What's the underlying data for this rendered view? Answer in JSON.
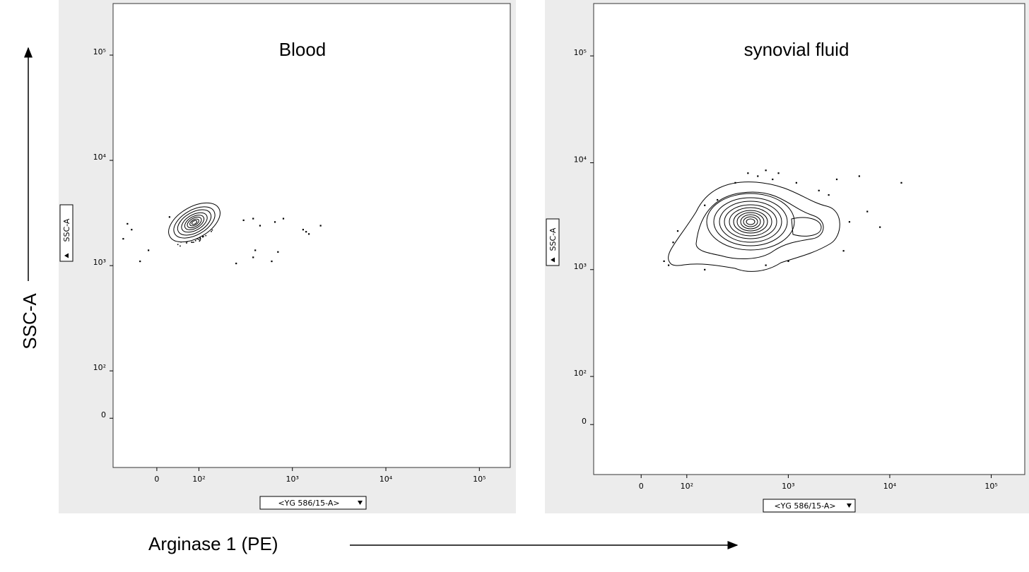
{
  "chart_data": [
    {
      "type": "scatter",
      "title": "Blood",
      "x_label": "<YG 586/15-A>",
      "y_label": "SSC-A",
      "color": "#000000",
      "xlim": [
        -104,
        214000
      ],
      "ylim": [
        -104,
        309000
      ],
      "xticks": [
        0,
        {
          "value": 100,
          "label": "10²"
        },
        {
          "value": 1000,
          "label": "10³"
        },
        {
          "value": 10000,
          "label": "10⁴"
        },
        {
          "value": 100000,
          "label": "10⁵"
        }
      ],
      "yticks": [
        0,
        {
          "value": 100,
          "label": "10²"
        },
        {
          "value": 1000,
          "label": "10³"
        },
        {
          "value": 10000,
          "label": "10⁴"
        },
        {
          "value": 100000,
          "label": "10⁵"
        }
      ],
      "x": [
        300,
        380,
        450,
        650,
        1400,
        1500,
        2000,
        380,
        600,
        700,
        -60,
        -80,
        -40,
        -20,
        30,
        800,
        1300,
        250,
        400,
        -70
      ],
      "y": [
        2700,
        2800,
        2400,
        2600,
        2100,
        2000,
        2400,
        1200,
        1100,
        1350,
        2200,
        1800,
        1100,
        1400,
        2900,
        2800,
        2200,
        1050,
        1400,
        2500
      ]
    },
    {
      "type": "scatter",
      "title": "synovial fluid",
      "x_label": "<YG 586/15-A>",
      "y_label": "SSC-A",
      "color": "#000000",
      "xlim": [
        -104,
        214000
      ],
      "ylim": [
        -104,
        309000
      ],
      "xticks": [
        0,
        {
          "value": 100,
          "label": "10²"
        },
        {
          "value": 1000,
          "label": "10³"
        },
        {
          "value": 10000,
          "label": "10⁴"
        },
        {
          "value": 100000,
          "label": "10⁵"
        }
      ],
      "yticks": [
        0,
        {
          "value": 100,
          "label": "10²"
        },
        {
          "value": 1000,
          "label": "10³"
        },
        {
          "value": 10000,
          "label": "10⁴"
        },
        {
          "value": 100000,
          "label": "10⁵"
        }
      ],
      "x": [
        50,
        60,
        70,
        80,
        150,
        200,
        300,
        400,
        500,
        600,
        700,
        800,
        1200,
        2000,
        2500,
        3000,
        5000,
        6000,
        8000,
        13000,
        4000,
        3500,
        150,
        600,
        1000
      ],
      "y": [
        1200,
        1100,
        1800,
        2300,
        4000,
        4500,
        6500,
        8000,
        7500,
        8500,
        7000,
        8000,
        6500,
        5500,
        5000,
        7000,
        7500,
        3500,
        2500,
        6500,
        2800,
        1500,
        1000,
        1100,
        1200
      ]
    }
  ],
  "figure": {
    "y_label": "SSC-A",
    "x_label": "Arginase 1 (PE)"
  }
}
